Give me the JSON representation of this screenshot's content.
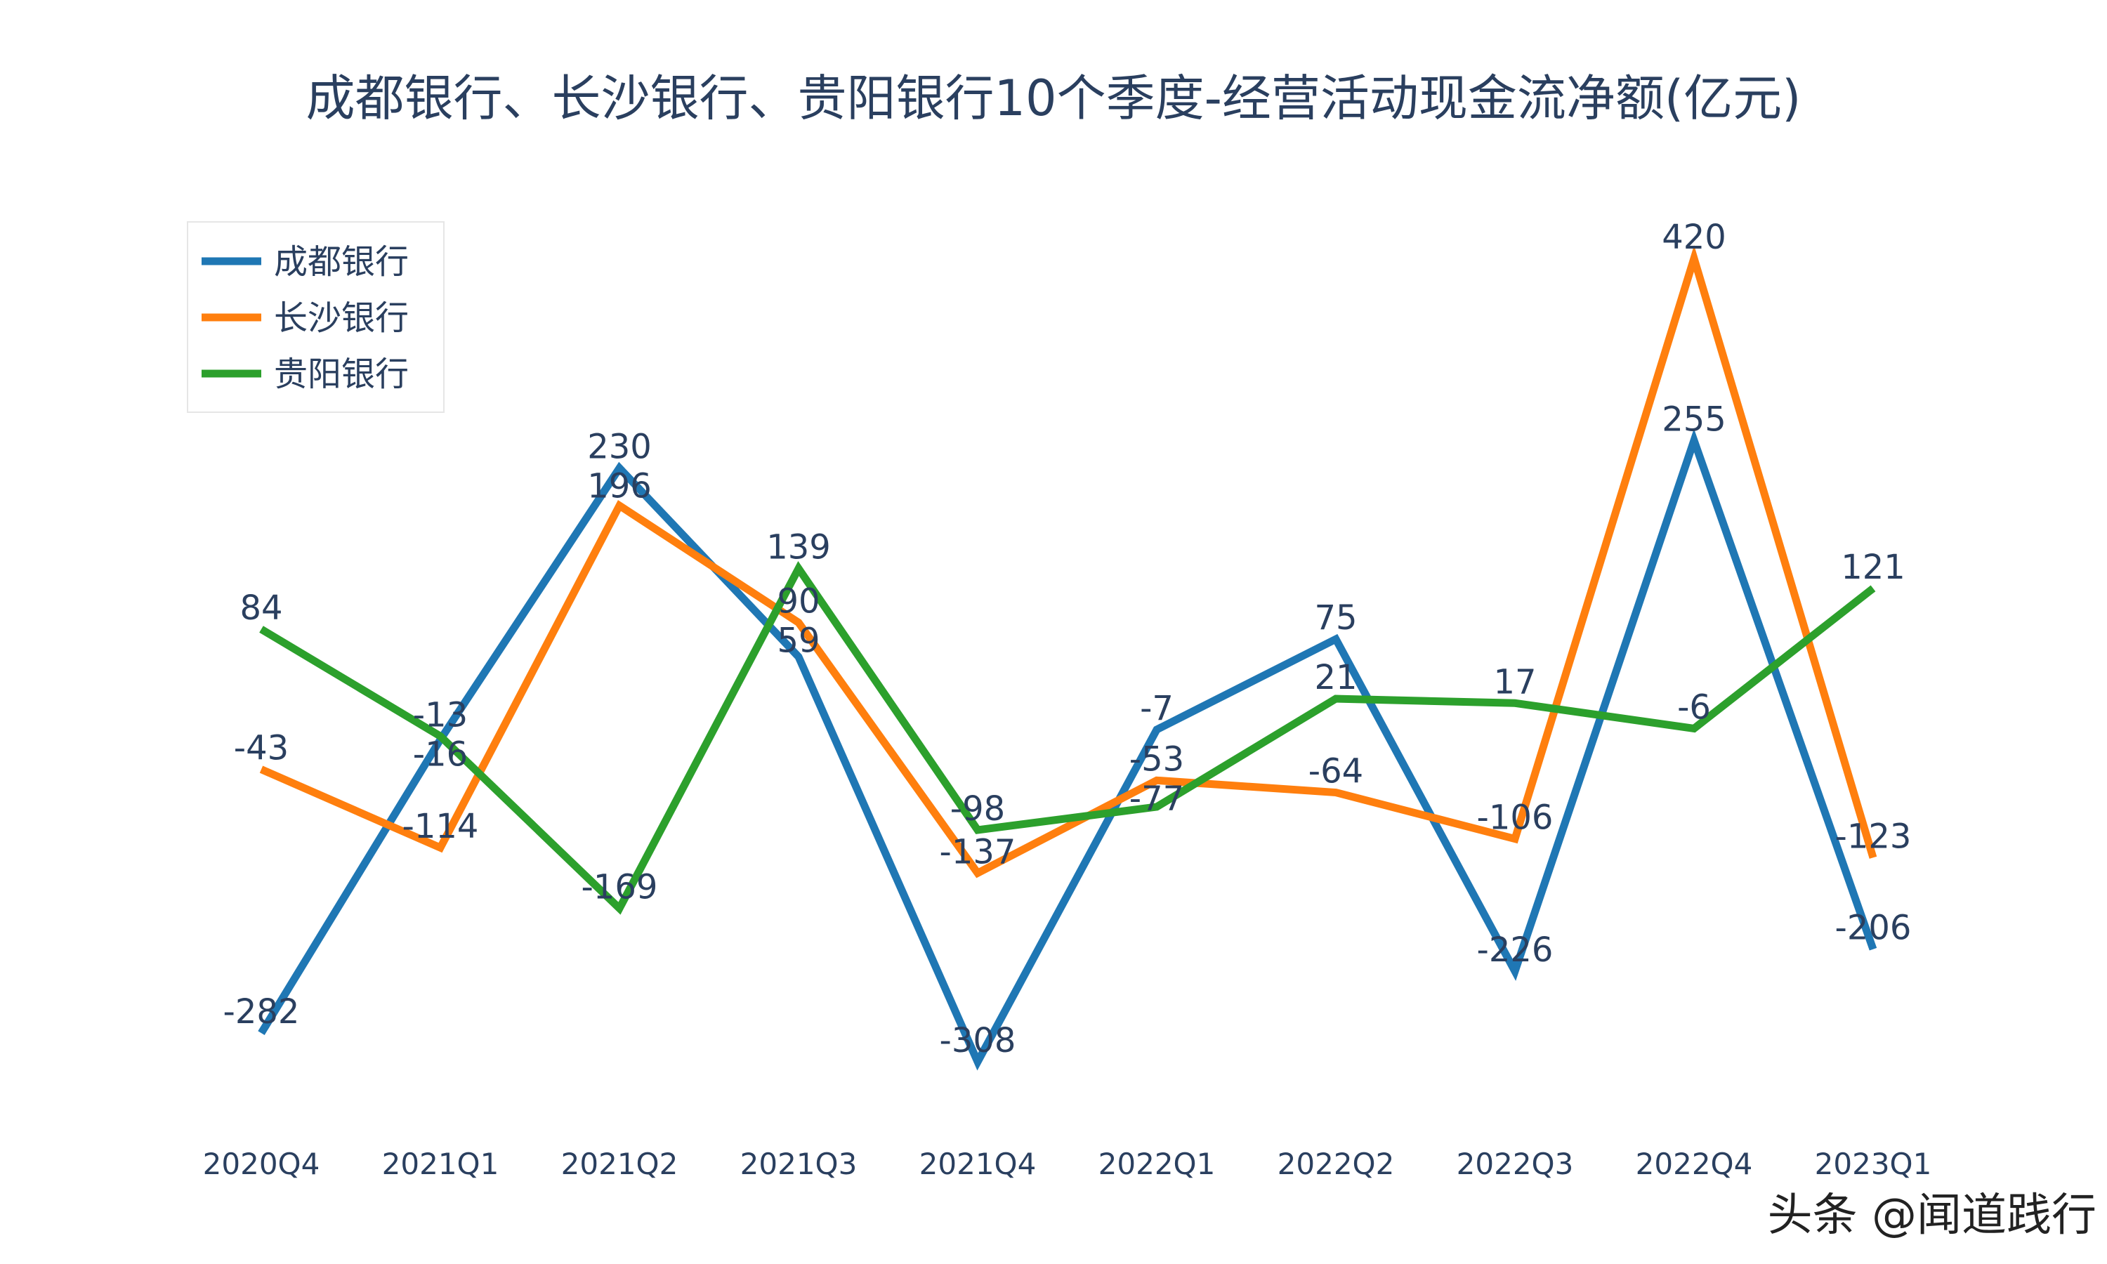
{
  "chart_data": {
    "type": "line",
    "title": "成都银行、长沙银行、贵阳银行10个季度-经营活动现金流净额(亿元)",
    "categories": [
      "2020Q4",
      "2021Q1",
      "2021Q2",
      "2021Q3",
      "2021Q4",
      "2022Q1",
      "2022Q2",
      "2022Q3",
      "2022Q4",
      "2023Q1"
    ],
    "series": [
      {
        "name": "成都银行",
        "color": "#1f77b4",
        "values": [
          -282,
          -16,
          230,
          59,
          -308,
          -7,
          75,
          -226,
          255,
          -206
        ]
      },
      {
        "name": "长沙银行",
        "color": "#ff7f0e",
        "values": [
          -43,
          -114,
          196,
          90,
          -137,
          -53,
          -64,
          -106,
          420,
          -123
        ]
      },
      {
        "name": "贵阳银行",
        "color": "#2ca02c",
        "values": [
          84,
          -13,
          -169,
          139,
          -98,
          -77,
          21,
          17,
          -6,
          121
        ]
      }
    ],
    "xlabel": "",
    "ylabel": "",
    "grid": false,
    "data_labels": true,
    "legend_position": "top-left"
  },
  "watermark": "头条 @闻道践行"
}
